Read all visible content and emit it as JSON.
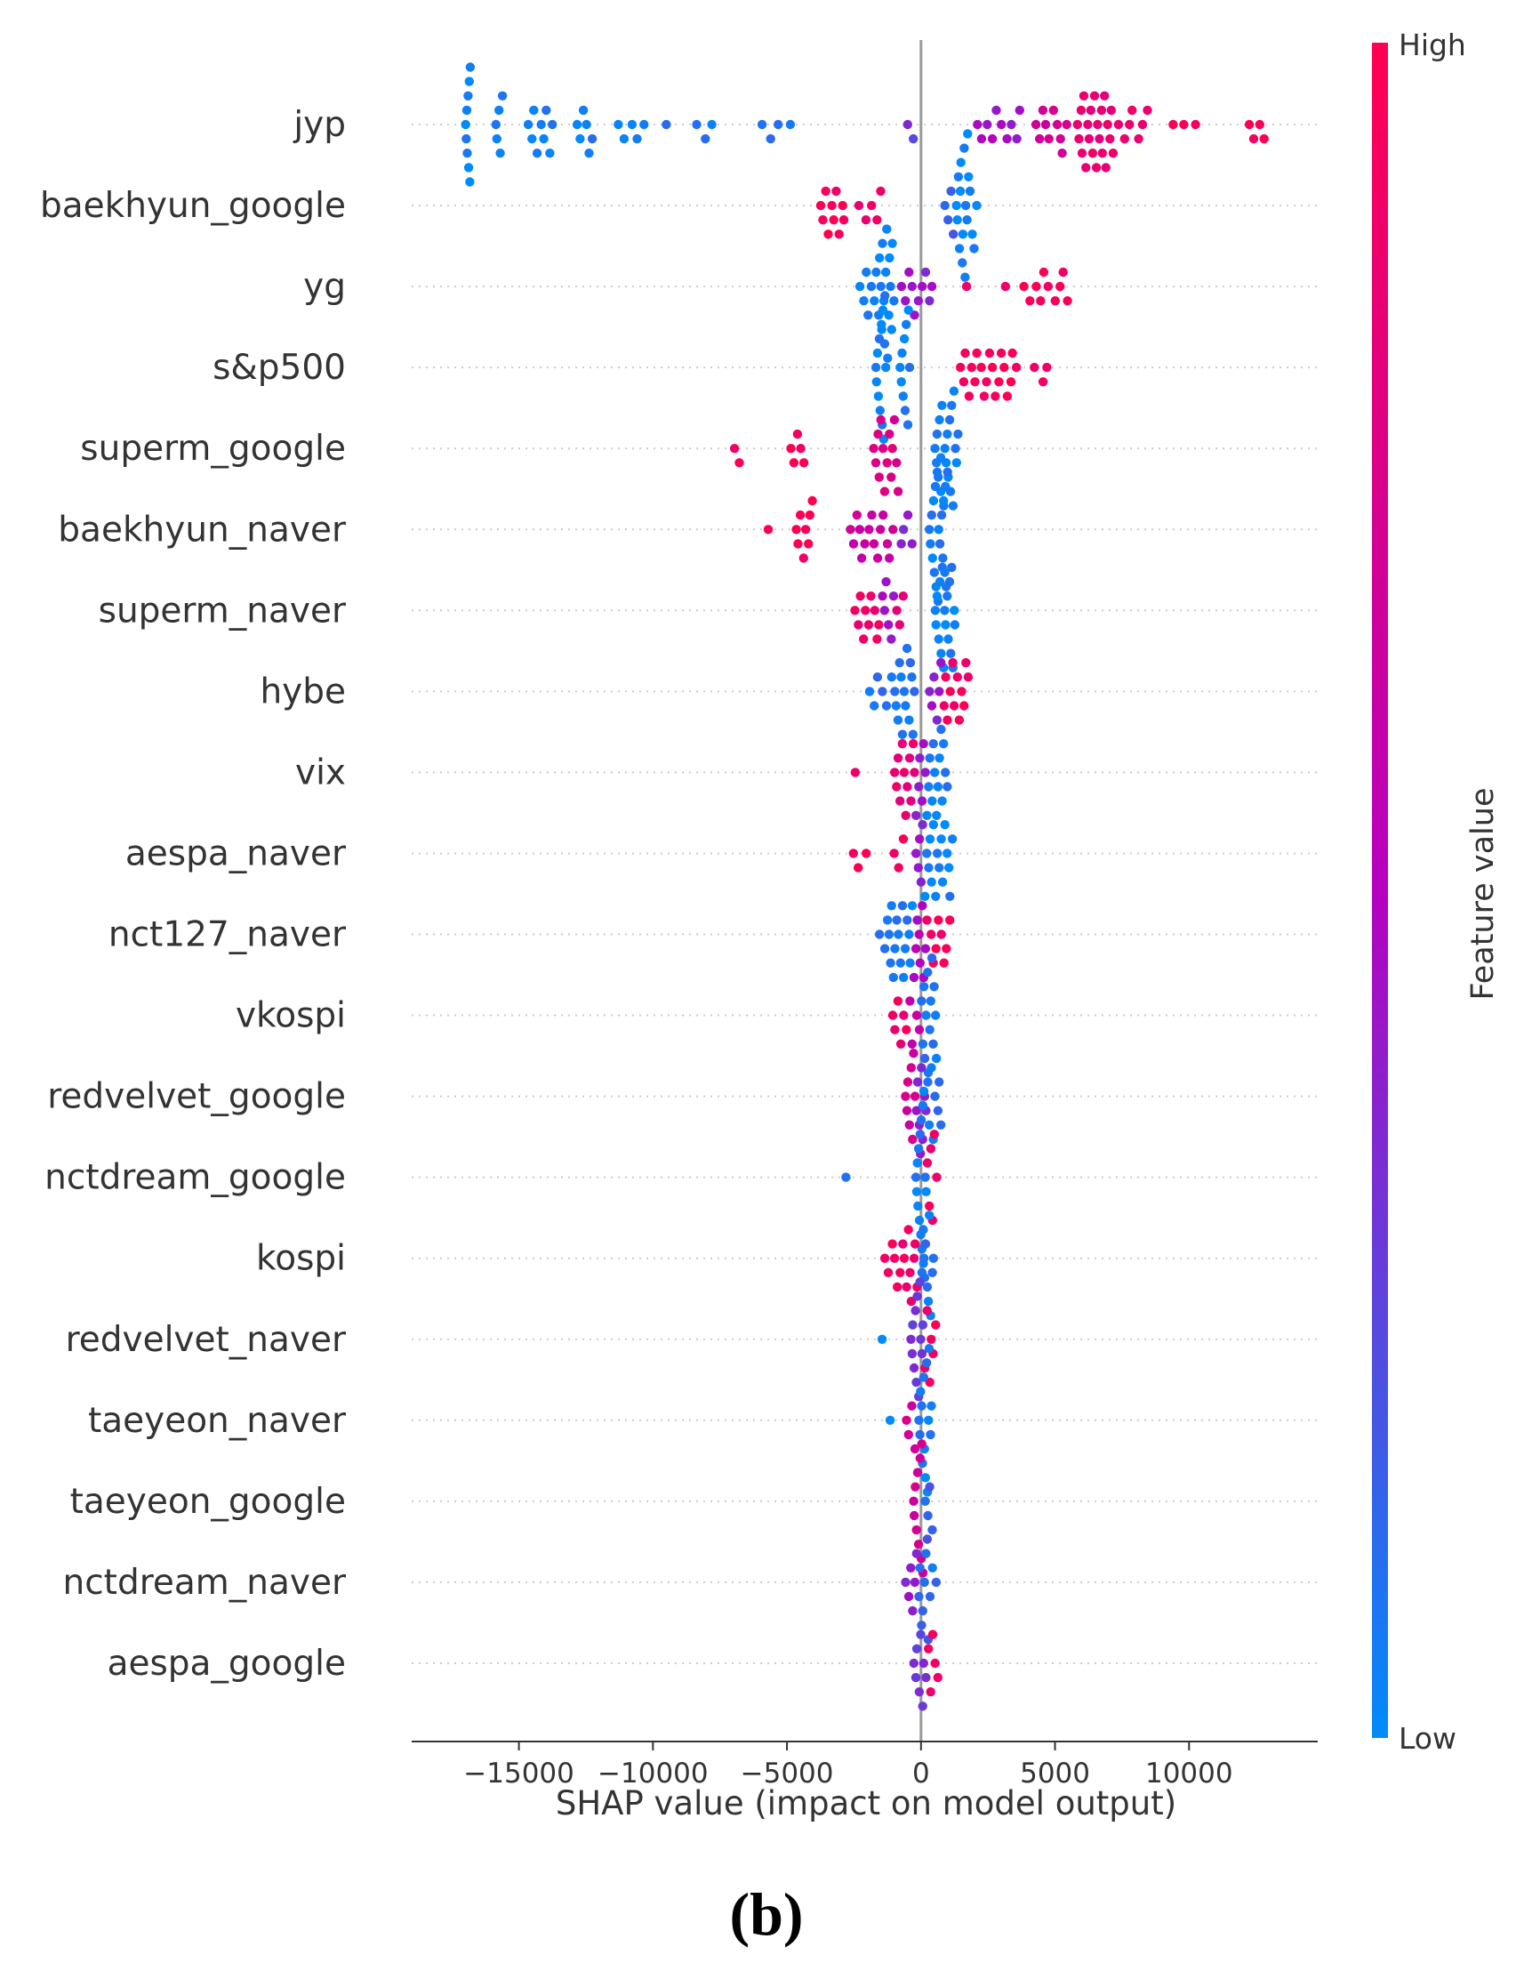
{
  "chart_data": {
    "type": "scatter",
    "subtype": "shap-beeswarm-summary",
    "xlabel": "SHAP value (impact on model output)",
    "xlim": [
      -19000,
      14800
    ],
    "xticks": [
      -15000,
      -10000,
      -5000,
      0,
      5000,
      10000
    ],
    "xtick_labels": [
      "−15000",
      "−10000",
      "−5000",
      "0",
      "5000",
      "10000"
    ],
    "features": [
      "jyp",
      "baekhyun_google",
      "yg",
      "s&p500",
      "superm_google",
      "baekhyun_naver",
      "superm_naver",
      "hybe",
      "vix",
      "aespa_naver",
      "nct127_naver",
      "vkospi",
      "redvelvet_google",
      "nctdream_google",
      "kospi",
      "redvelvet_naver",
      "taeyeon_naver",
      "taeyeon_google",
      "nctdream_naver",
      "aespa_google"
    ],
    "clusters": [
      [
        [
          -17000,
          -16800,
          9,
          0.02
        ],
        [
          -15900,
          -15600,
          5,
          0.04
        ],
        [
          -14700,
          -13700,
          9,
          0.05
        ],
        [
          -12900,
          -12200,
          6,
          0.06
        ],
        [
          -11400,
          -10200,
          5,
          0.08
        ],
        [
          -9600,
          -9400,
          1,
          0.08
        ],
        [
          -8500,
          -7700,
          3,
          0.09
        ],
        [
          -6100,
          -4800,
          4,
          0.1
        ],
        [
          -600,
          -200,
          2,
          0.3
        ],
        [
          2000,
          3800,
          10,
          0.45
        ],
        [
          4200,
          5500,
          10,
          0.7
        ],
        [
          5800,
          7200,
          22,
          0.85
        ],
        [
          7300,
          8500,
          7,
          0.9
        ],
        [
          9200,
          10400,
          3,
          0.95
        ],
        [
          12200,
          12900,
          4,
          0.98
        ]
      ],
      [
        [
          -3800,
          -2800,
          10,
          0.95
        ],
        [
          -2400,
          -1400,
          5,
          0.88
        ],
        [
          800,
          1300,
          4,
          0.15
        ],
        [
          1300,
          1800,
          14,
          0.03
        ],
        [
          1800,
          2100,
          4,
          0.05
        ]
      ],
      [
        [
          -2300,
          -1600,
          7,
          0.05
        ],
        [
          -1600,
          -1000,
          16,
          0.03
        ],
        [
          -800,
          500,
          10,
          0.4
        ],
        [
          1600,
          1800,
          1,
          0.9
        ],
        [
          3100,
          3200,
          1,
          0.9
        ],
        [
          3800,
          5600,
          10,
          0.95
        ]
      ],
      [
        [
          -1700,
          -1300,
          12,
          0.05
        ],
        [
          -800,
          -400,
          10,
          0.05
        ],
        [
          1400,
          3600,
          20,
          0.95
        ],
        [
          4100,
          4900,
          3,
          0.95
        ]
      ],
      [
        [
          -7200,
          -6500,
          2,
          0.95
        ],
        [
          -4900,
          -4300,
          5,
          0.95
        ],
        [
          -1800,
          -800,
          14,
          0.75
        ],
        [
          500,
          1400,
          20,
          0.05
        ]
      ],
      [
        [
          -5800,
          -5600,
          1,
          0.95
        ],
        [
          -4700,
          -4000,
          8,
          0.95
        ],
        [
          -2700,
          -1000,
          15,
          0.65
        ],
        [
          -800,
          -300,
          4,
          0.35
        ],
        [
          300,
          1000,
          20,
          0.05
        ]
      ],
      [
        [
          -2500,
          -1500,
          10,
          0.9
        ],
        [
          -1500,
          -1000,
          6,
          0.45
        ],
        [
          -1000,
          -600,
          3,
          0.8
        ],
        [
          500,
          1300,
          18,
          0.05
        ]
      ],
      [
        [
          -2000,
          -1000,
          6,
          0.1
        ],
        [
          -1000,
          -200,
          14,
          0.08
        ],
        [
          300,
          800,
          6,
          0.4
        ],
        [
          800,
          1800,
          12,
          0.93
        ]
      ],
      [
        [
          -2500,
          -2400,
          1,
          0.95
        ],
        [
          -1000,
          -200,
          12,
          0.85
        ],
        [
          -200,
          200,
          6,
          0.4
        ],
        [
          200,
          1000,
          14,
          0.05
        ]
      ],
      [
        [
          -2600,
          -2000,
          3,
          0.95
        ],
        [
          -1100,
          -600,
          3,
          0.95
        ],
        [
          -200,
          100,
          5,
          0.4
        ],
        [
          100,
          1200,
          16,
          0.05
        ]
      ],
      [
        [
          -1600,
          -1300,
          2,
          0.05
        ],
        [
          -1300,
          -300,
          16,
          0.05
        ],
        [
          -300,
          200,
          8,
          0.5
        ],
        [
          200,
          1100,
          9,
          0.95
        ]
      ],
      [
        [
          -1100,
          -500,
          6,
          0.9
        ],
        [
          -500,
          0,
          4,
          0.6
        ],
        [
          0,
          600,
          14,
          0.08
        ]
      ],
      [
        [
          -600,
          -200,
          8,
          0.7
        ],
        [
          -200,
          200,
          8,
          0.4
        ],
        [
          200,
          800,
          8,
          0.1
        ]
      ],
      [
        [
          -2800,
          -2800,
          1,
          0.05
        ],
        [
          -200,
          200,
          16,
          0.06
        ],
        [
          200,
          600,
          6,
          0.9
        ]
      ],
      [
        [
          -1400,
          -800,
          5,
          0.93
        ],
        [
          -800,
          -100,
          10,
          0.9
        ],
        [
          0,
          500,
          10,
          0.08
        ]
      ],
      [
        [
          -1500,
          -1400,
          1,
          0.05
        ],
        [
          -400,
          100,
          12,
          0.3
        ],
        [
          100,
          600,
          6,
          0.92
        ]
      ],
      [
        [
          -1200,
          -1100,
          1,
          0.05
        ],
        [
          -600,
          -200,
          4,
          0.7
        ],
        [
          -100,
          400,
          14,
          0.06
        ]
      ],
      [
        [
          -300,
          100,
          10,
          0.7
        ],
        [
          100,
          500,
          4,
          0.15
        ]
      ],
      [
        [
          -600,
          -100,
          6,
          0.4
        ],
        [
          -100,
          300,
          8,
          0.15
        ],
        [
          300,
          600,
          3,
          0.1
        ]
      ],
      [
        [
          -300,
          200,
          8,
          0.3
        ],
        [
          200,
          700,
          5,
          0.9
        ]
      ]
    ],
    "colorbar": {
      "label": "Feature value",
      "high_label": "High",
      "low_label": "Low",
      "high_color": "#ff0051",
      "mid_color": "#b600bf",
      "low_color": "#008bfb"
    }
  },
  "panel_label": "(b)"
}
